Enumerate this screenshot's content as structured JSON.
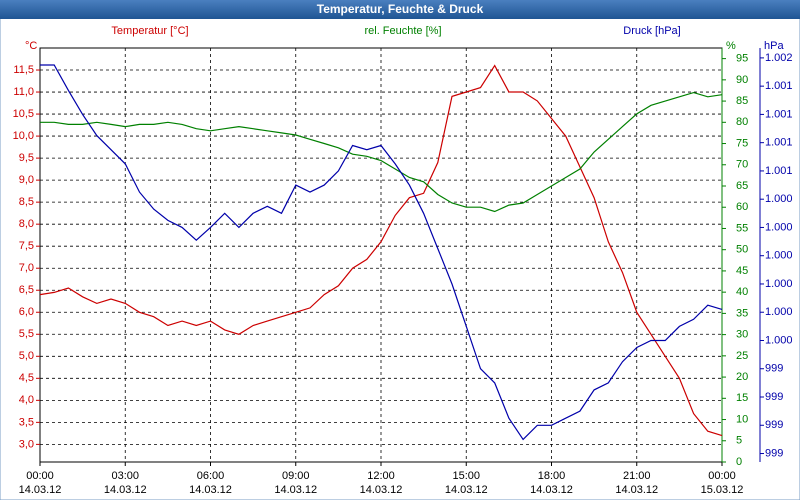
{
  "chart_data": {
    "type": "line",
    "title": "Temperatur, Feuchte & Druck",
    "xlim": [
      0,
      24
    ],
    "xticks": [
      {
        "value": 0,
        "label": "00:00"
      },
      {
        "value": 3,
        "label": "03:00"
      },
      {
        "value": 6,
        "label": "06:00"
      },
      {
        "value": 9,
        "label": "09:00"
      },
      {
        "value": 12,
        "label": "12:00"
      },
      {
        "value": 15,
        "label": "15:00"
      },
      {
        "value": 18,
        "label": "18:00"
      },
      {
        "value": 21,
        "label": "21:00"
      },
      {
        "value": 24,
        "label": "00:00"
      }
    ],
    "xtick_dates": [
      "14.03.12",
      "14.03.12",
      "14.03.12",
      "14.03.12",
      "14.03.12",
      "14.03.12",
      "14.03.12",
      "14.03.12",
      "15.03.12"
    ],
    "x": [
      0,
      0.5,
      1,
      1.5,
      2,
      2.5,
      3,
      3.5,
      4,
      4.5,
      5,
      5.5,
      6,
      6.5,
      7,
      7.5,
      8,
      8.5,
      9,
      9.5,
      10,
      10.5,
      11,
      11.5,
      12,
      12.5,
      13,
      13.5,
      14,
      14.5,
      15,
      15.5,
      16,
      16.5,
      17,
      17.5,
      18,
      18.5,
      19,
      19.5,
      20,
      20.5,
      21,
      21.5,
      22,
      22.5,
      23,
      23.5,
      24
    ],
    "y_unit": "°C",
    "y2_unit": "%",
    "y3_unit": "hPa",
    "ylim": [
      2.6,
      12.0
    ],
    "yticks": [
      {
        "value": 3.0,
        "label": "3,0"
      },
      {
        "value": 3.5,
        "label": "3,5"
      },
      {
        "value": 4.0,
        "label": "4,0"
      },
      {
        "value": 4.5,
        "label": "4,5"
      },
      {
        "value": 5.0,
        "label": "5,0"
      },
      {
        "value": 5.5,
        "label": "5,5"
      },
      {
        "value": 6.0,
        "label": "6,0"
      },
      {
        "value": 6.5,
        "label": "6,5"
      },
      {
        "value": 7.0,
        "label": "7,0"
      },
      {
        "value": 7.5,
        "label": "7,5"
      },
      {
        "value": 8.0,
        "label": "8,0"
      },
      {
        "value": 8.5,
        "label": "8,5"
      },
      {
        "value": 9.0,
        "label": "9,0"
      },
      {
        "value": 9.5,
        "label": "9,5"
      },
      {
        "value": 10.0,
        "label": "10,0"
      },
      {
        "value": 10.5,
        "label": "10,5"
      },
      {
        "value": 11.0,
        "label": "11,0"
      },
      {
        "value": 11.5,
        "label": "11,5"
      }
    ],
    "y2lim": [
      0,
      97.5
    ],
    "y2ticks": [
      0,
      5,
      10,
      15,
      20,
      25,
      30,
      35,
      40,
      45,
      50,
      55,
      60,
      65,
      70,
      75,
      80,
      85,
      90,
      95
    ],
    "y3lim": [
      998.64,
      1001.57
    ],
    "y3ticks": [
      {
        "value": 998.7,
        "label": "999"
      },
      {
        "value": 998.9,
        "label": "999"
      },
      {
        "value": 999.1,
        "label": "999"
      },
      {
        "value": 999.3,
        "label": "999"
      },
      {
        "value": 999.5,
        "label": "1.000"
      },
      {
        "value": 999.7,
        "label": "1.000"
      },
      {
        "value": 999.9,
        "label": "1.000"
      },
      {
        "value": 1000.1,
        "label": "1.000"
      },
      {
        "value": 1000.3,
        "label": "1.000"
      },
      {
        "value": 1000.5,
        "label": "1.000"
      },
      {
        "value": 1000.7,
        "label": "1.001"
      },
      {
        "value": 1000.9,
        "label": "1.001"
      },
      {
        "value": 1001.1,
        "label": "1.001"
      },
      {
        "value": 1001.3,
        "label": "1.001"
      },
      {
        "value": 1001.5,
        "label": "1.002"
      }
    ],
    "grid": true,
    "series": [
      {
        "name": "Temperatur [°C]",
        "color": "#cc0000",
        "axis": "y",
        "values": [
          6.4,
          6.45,
          6.55,
          6.35,
          6.2,
          6.3,
          6.2,
          6.0,
          5.9,
          5.7,
          5.8,
          5.7,
          5.8,
          5.6,
          5.5,
          5.7,
          5.8,
          5.9,
          6.0,
          6.1,
          6.4,
          6.6,
          7.0,
          7.2,
          7.6,
          8.2,
          8.6,
          8.7,
          9.4,
          10.9,
          11.0,
          11.1,
          11.6,
          11.0,
          11.0,
          10.8,
          10.4,
          10.0,
          9.3,
          8.6,
          7.6,
          6.9,
          6.0,
          5.5,
          5.0,
          4.5,
          3.7,
          3.3,
          3.2
        ]
      },
      {
        "name": "rel. Feuchte [%]",
        "color": "#008000",
        "axis": "y2",
        "values": [
          80,
          80,
          79.5,
          79.5,
          80,
          79.5,
          79,
          79.5,
          79.5,
          80,
          79.5,
          78.5,
          78,
          78.5,
          79,
          78.5,
          78,
          77.5,
          77,
          76,
          75,
          74,
          72.5,
          72,
          71,
          69,
          67,
          66,
          63,
          61,
          60,
          60,
          59,
          60.5,
          61,
          63,
          65,
          67,
          69,
          73,
          76,
          79,
          82,
          84,
          85,
          86,
          87,
          86,
          86.5
        ]
      },
      {
        "name": "Druck [hPa]",
        "color": "#0000aa",
        "axis": "y3",
        "values": [
          1001.45,
          1001.45,
          1001.27,
          1001.1,
          1000.95,
          1000.85,
          1000.75,
          1000.55,
          1000.43,
          1000.35,
          1000.3,
          1000.21,
          1000.3,
          1000.4,
          1000.3,
          1000.4,
          1000.45,
          1000.4,
          1000.6,
          1000.55,
          1000.6,
          1000.7,
          1000.88,
          1000.85,
          1000.88,
          1000.75,
          1000.6,
          1000.4,
          1000.15,
          999.9,
          999.6,
          999.3,
          999.2,
          998.95,
          998.8,
          998.9,
          998.9,
          998.95,
          999.0,
          999.15,
          999.2,
          999.35,
          999.45,
          999.5,
          999.5,
          999.6,
          999.65,
          999.75,
          999.72
        ]
      }
    ]
  }
}
